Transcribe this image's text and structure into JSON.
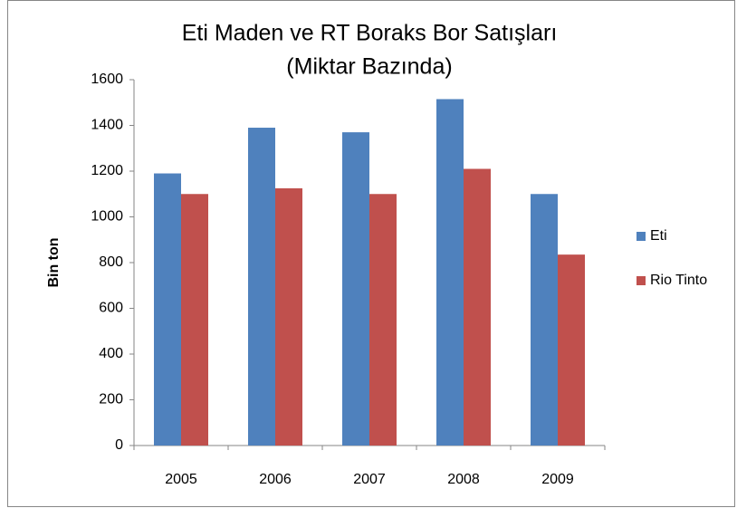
{
  "chart_data": {
    "type": "bar",
    "title": "Eti Maden ve RT Boraks Bor Satışları",
    "subtitle": "(Miktar Bazında)",
    "y_label": "Bin ton",
    "categories": [
      "2005",
      "2006",
      "2007",
      "2008",
      "2009"
    ],
    "series": [
      {
        "name": "Eti",
        "color": "#4f81bd",
        "values": [
          1190,
          1390,
          1370,
          1515,
          1100
        ]
      },
      {
        "name": "Rio Tinto",
        "color": "#c0504d",
        "values": [
          1100,
          1125,
          1100,
          1210,
          835
        ]
      }
    ],
    "ylim": [
      0,
      1600
    ],
    "yticks": [
      0,
      200,
      400,
      600,
      800,
      1000,
      1200,
      1400,
      1600
    ],
    "grid": false,
    "legend": "right"
  }
}
